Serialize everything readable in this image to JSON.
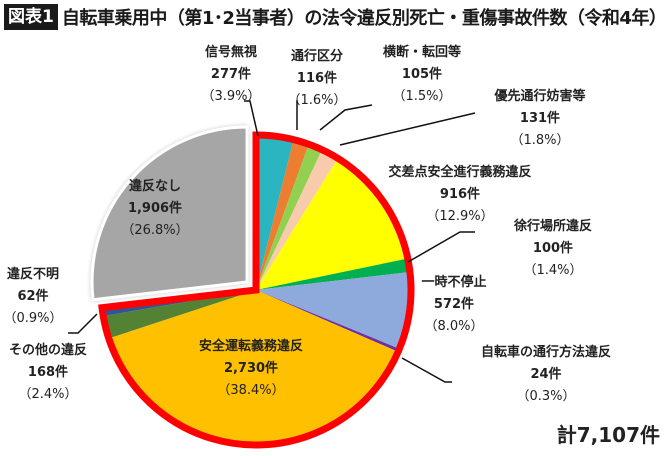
{
  "title": {
    "badge": "図表1",
    "text": "自転車乗用中（第1･2当事者）の法令違反別死亡・重傷事故件数（令和4年）"
  },
  "total_label": "計7,107件",
  "chart_data": {
    "type": "pie",
    "title": "自転車乗用中（第1･2当事者）の法令違反別死亡・重傷事故件数（令和4年）",
    "total": 7107,
    "unit": "件",
    "start_angle": "12 o'clock, clockwise",
    "highlight": "All violation categories outlined in red; 違反なし slice exploded",
    "slices": [
      {
        "label": "信号無視",
        "value": 277,
        "percent": 3.9,
        "color": "#2BB5C0"
      },
      {
        "label": "通行区分",
        "value": 116,
        "percent": 1.6,
        "color": "#ED7D31"
      },
      {
        "label": "横断・転回等",
        "value": 105,
        "percent": 1.5,
        "color": "#92D050"
      },
      {
        "label": "優先通行妨害等",
        "value": 131,
        "percent": 1.8,
        "color": "#F8CBAD"
      },
      {
        "label": "交差点安全進行義務違反",
        "value": 916,
        "percent": 12.9,
        "color": "#FFFF00"
      },
      {
        "label": "徐行場所違反",
        "value": 100,
        "percent": 1.4,
        "color": "#00B050"
      },
      {
        "label": "一時不停止",
        "value": 572,
        "percent": 8.0,
        "color": "#8EA9DB"
      },
      {
        "label": "自転車の通行方法違反",
        "value": 24,
        "percent": 0.3,
        "color": "#7030A0"
      },
      {
        "label": "安全運転義務違反",
        "value": 2730,
        "percent": 38.4,
        "color": "#FFC000"
      },
      {
        "label": "その他の違反",
        "value": 168,
        "percent": 2.4,
        "color": "#548235"
      },
      {
        "label": "違反不明",
        "value": 62,
        "percent": 0.9,
        "color": "#2F5597"
      },
      {
        "label": "違反なし",
        "value": 1906,
        "percent": 26.8,
        "color": "#A6A6A6"
      }
    ]
  },
  "labels": [
    {
      "name": "信号無視",
      "count": "277件",
      "pct": "（3.9%）"
    },
    {
      "name": "通行区分",
      "count": "116件",
      "pct": "（1.6%）"
    },
    {
      "name": "横断・転回等",
      "count": "105件",
      "pct": "（1.5%）"
    },
    {
      "name": "優先通行妨害等",
      "count": "131件",
      "pct": "（1.8%）"
    },
    {
      "name": "交差点安全進行義務違反",
      "count": "916件",
      "pct": "（12.9%）"
    },
    {
      "name": "徐行場所違反",
      "count": "100件",
      "pct": "（1.4%）"
    },
    {
      "name": "一時不停止",
      "count": "572件",
      "pct": "（8.0%）"
    },
    {
      "name": "自転車の通行方法違反",
      "count": "24件",
      "pct": "（0.3%）"
    },
    {
      "name": "安全運転義務違反",
      "count": "2,730件",
      "pct": "（38.4%）"
    },
    {
      "name": "その他の違反",
      "count": "168件",
      "pct": "（2.4%）"
    },
    {
      "name": "違反不明",
      "count": "62件",
      "pct": "（0.9%）"
    },
    {
      "name": "違反なし",
      "count": "1,906件",
      "pct": "（26.8%）"
    }
  ]
}
